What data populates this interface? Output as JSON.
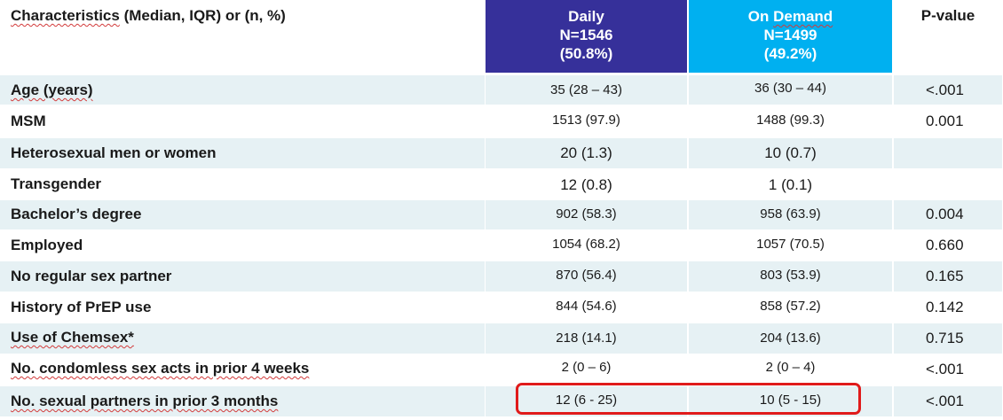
{
  "header": {
    "characteristics_prefix": "Characteristics",
    "characteristics_suffix": " (Median, IQR) or (n, %)",
    "daily": {
      "name": "Daily",
      "n": "N=1546",
      "pct": "(50.8%)"
    },
    "on_demand": {
      "name_a": "On ",
      "name_b": "Demand",
      "n": "N=1499",
      "pct": "(49.2%)"
    },
    "p_value": "P-value"
  },
  "rows": [
    {
      "label": "Age (years)",
      "daily": "35 (28 – 43)",
      "on_demand": "36 (30 – 44)",
      "p": "<.001"
    },
    {
      "label": "MSM",
      "daily": "1513 (97.9)",
      "on_demand": "1488 (99.3)",
      "p": "0.001"
    },
    {
      "label": "Heterosexual men or women",
      "daily": "20 (1.3)",
      "on_demand": "10 (0.7)",
      "p": ""
    },
    {
      "label": "Transgender",
      "daily": "12 (0.8)",
      "on_demand": "1 (0.1)",
      "p": ""
    },
    {
      "label": "Bachelor’s degree",
      "daily": "902 (58.3)",
      "on_demand": "958 (63.9)",
      "p": "0.004"
    },
    {
      "label": "Employed",
      "daily": "1054 (68.2)",
      "on_demand": "1057 (70.5)",
      "p": "0.660"
    },
    {
      "label": "No regular sex partner",
      "daily": "870 (56.4)",
      "on_demand": "803 (53.9)",
      "p": "0.165"
    },
    {
      "label": "History of PrEP use",
      "daily": "844 (54.6)",
      "on_demand": "858 (57.2)",
      "p": "0.142"
    },
    {
      "label": "Use of Chemsex*",
      "daily": "218 (14.1)",
      "on_demand": "204 (13.6)",
      "p": "0.715"
    },
    {
      "label": "No. condomless sex acts in prior 4 weeks",
      "daily": "2 (0 – 6)",
      "on_demand": "2 (0 – 4)",
      "p": "<.001"
    },
    {
      "label": "No. sexual partners in prior 3 months",
      "daily": "12 (6 - 25)",
      "on_demand": "10 (5 - 15)",
      "p": "<.001"
    }
  ],
  "colors": {
    "daily_header": "#36309a",
    "on_demand_header": "#00b0f0",
    "row_shade": "#e6f1f4",
    "highlight": "#e01b1b"
  }
}
